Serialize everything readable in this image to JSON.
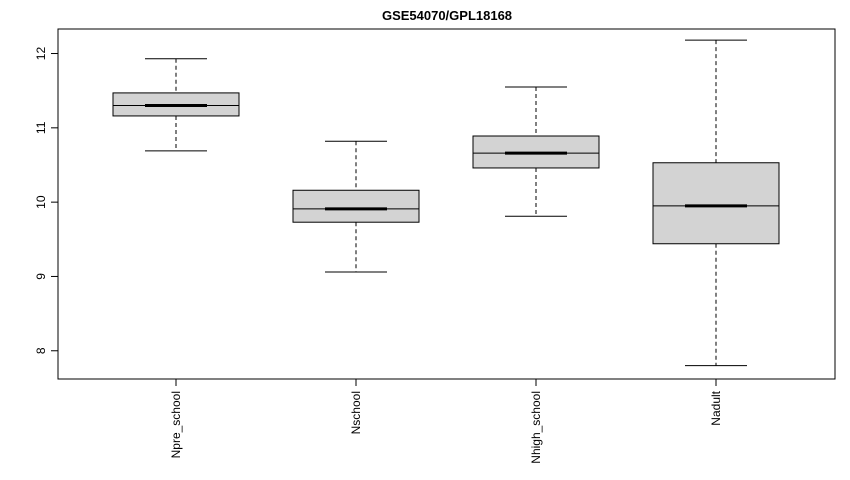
{
  "chart_data": {
    "type": "boxplot",
    "title": "GSE54070/GPL18168",
    "xlabel": "",
    "ylabel": "",
    "ylim": [
      7.62,
      12.33
    ],
    "yticks": [
      8,
      9,
      10,
      11,
      12
    ],
    "grid": false,
    "categories": [
      "Npre_school",
      "Nschool",
      "Nhigh_school",
      "Nadult"
    ],
    "boxes": [
      {
        "min": 10.69,
        "q1": 11.16,
        "median": 11.3,
        "q3": 11.47,
        "max": 11.93
      },
      {
        "min": 9.06,
        "q1": 9.73,
        "median": 9.91,
        "q3": 10.16,
        "max": 10.82
      },
      {
        "min": 9.81,
        "q1": 10.46,
        "median": 10.66,
        "q3": 10.89,
        "max": 11.55
      },
      {
        "min": 7.8,
        "q1": 9.44,
        "median": 9.95,
        "q3": 10.53,
        "max": 12.18
      }
    ],
    "colors": {
      "box_fill": "#d3d3d3",
      "stroke": "#000000"
    }
  }
}
